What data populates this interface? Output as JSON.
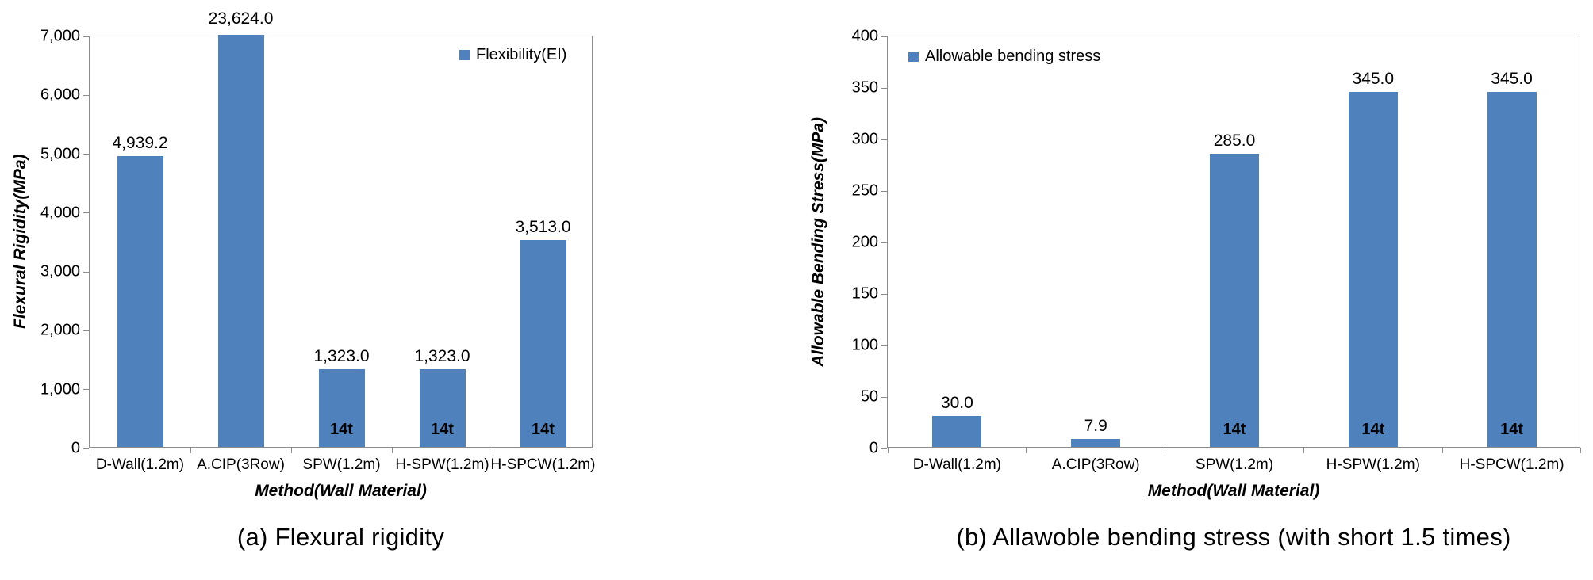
{
  "figure": {
    "background": "#ffffff"
  },
  "chart_data": [
    {
      "type": "bar",
      "title": "",
      "categories": [
        "D-Wall(1.2m)",
        "A.CIP(3Row)",
        "SPW(1.2m)",
        "H-SPW(1.2m)",
        "H-SPCW(1.2m)"
      ],
      "values": [
        4939.2,
        23624.0,
        1323.0,
        1323.0,
        3513.0
      ],
      "value_labels": [
        "4,939.2",
        "23,624.0",
        "1,323.0",
        "1,323.0",
        "3,513.0"
      ],
      "bar_labels": [
        "",
        "",
        "14t",
        "14t",
        "14t"
      ],
      "legend": "Flexibility(EI)",
      "legend_position": "top-right",
      "xlabel": "Method(Wall Material)",
      "ylabel": "Flexural Rigidity(MPa)",
      "ylim": [
        0,
        7000
      ],
      "ytick_labels": [
        "0",
        "1,000",
        "2,000",
        "3,000",
        "4,000",
        "5,000",
        "6,000",
        "7,000"
      ],
      "grid": false,
      "bar_color": "#4f81bd",
      "caption": "(a) Flexural rigidity"
    },
    {
      "type": "bar",
      "title": "",
      "categories": [
        "D-Wall(1.2m)",
        "A.CIP(3Row)",
        "SPW(1.2m)",
        "H-SPW(1.2m)",
        "H-SPCW(1.2m)"
      ],
      "values": [
        30.0,
        7.9,
        285.0,
        345.0,
        345.0
      ],
      "value_labels": [
        "30.0",
        "7.9",
        "285.0",
        "345.0",
        "345.0"
      ],
      "bar_labels": [
        "",
        "",
        "14t",
        "14t",
        "14t"
      ],
      "legend": "Allowable bending stress",
      "legend_position": "top-left",
      "xlabel": "Method(Wall Material)",
      "ylabel": "Allowable Bending Stress(MPa)",
      "ylim": [
        0,
        400
      ],
      "ytick_labels": [
        "0",
        "50",
        "100",
        "150",
        "200",
        "250",
        "300",
        "350",
        "400"
      ],
      "grid": false,
      "bar_color": "#4f81bd",
      "caption": "(b) Allawoble bending stress (with short 1.5 times)"
    }
  ]
}
